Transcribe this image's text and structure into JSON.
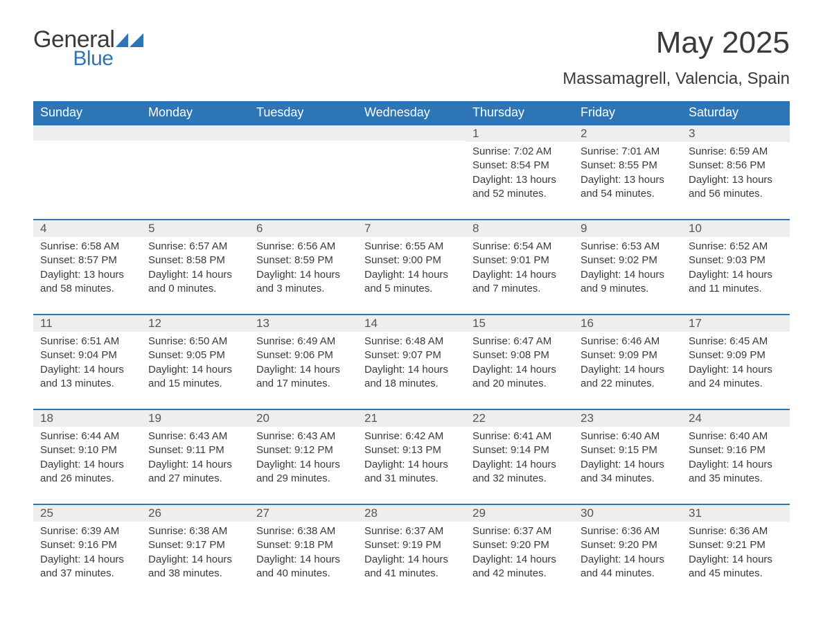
{
  "logo": {
    "top_word": "General",
    "bottom_word": "Blue",
    "mark_color": "#2e75b6"
  },
  "title": "May 2025",
  "subtitle": "Massamagrell, Valencia, Spain",
  "colors": {
    "header_bg": "#2e75b6",
    "header_text": "#ffffff",
    "daynum_bg": "#eeeeee",
    "row_border": "#2e75b6",
    "text": "#3a3a3a"
  },
  "weekdays": [
    "Sunday",
    "Monday",
    "Tuesday",
    "Wednesday",
    "Thursday",
    "Friday",
    "Saturday"
  ],
  "weeks": [
    [
      null,
      null,
      null,
      null,
      {
        "n": "1",
        "sunrise": "7:02 AM",
        "sunset": "8:54 PM",
        "daylight": "13 hours and 52 minutes."
      },
      {
        "n": "2",
        "sunrise": "7:01 AM",
        "sunset": "8:55 PM",
        "daylight": "13 hours and 54 minutes."
      },
      {
        "n": "3",
        "sunrise": "6:59 AM",
        "sunset": "8:56 PM",
        "daylight": "13 hours and 56 minutes."
      }
    ],
    [
      {
        "n": "4",
        "sunrise": "6:58 AM",
        "sunset": "8:57 PM",
        "daylight": "13 hours and 58 minutes."
      },
      {
        "n": "5",
        "sunrise": "6:57 AM",
        "sunset": "8:58 PM",
        "daylight": "14 hours and 0 minutes."
      },
      {
        "n": "6",
        "sunrise": "6:56 AM",
        "sunset": "8:59 PM",
        "daylight": "14 hours and 3 minutes."
      },
      {
        "n": "7",
        "sunrise": "6:55 AM",
        "sunset": "9:00 PM",
        "daylight": "14 hours and 5 minutes."
      },
      {
        "n": "8",
        "sunrise": "6:54 AM",
        "sunset": "9:01 PM",
        "daylight": "14 hours and 7 minutes."
      },
      {
        "n": "9",
        "sunrise": "6:53 AM",
        "sunset": "9:02 PM",
        "daylight": "14 hours and 9 minutes."
      },
      {
        "n": "10",
        "sunrise": "6:52 AM",
        "sunset": "9:03 PM",
        "daylight": "14 hours and 11 minutes."
      }
    ],
    [
      {
        "n": "11",
        "sunrise": "6:51 AM",
        "sunset": "9:04 PM",
        "daylight": "14 hours and 13 minutes."
      },
      {
        "n": "12",
        "sunrise": "6:50 AM",
        "sunset": "9:05 PM",
        "daylight": "14 hours and 15 minutes."
      },
      {
        "n": "13",
        "sunrise": "6:49 AM",
        "sunset": "9:06 PM",
        "daylight": "14 hours and 17 minutes."
      },
      {
        "n": "14",
        "sunrise": "6:48 AM",
        "sunset": "9:07 PM",
        "daylight": "14 hours and 18 minutes."
      },
      {
        "n": "15",
        "sunrise": "6:47 AM",
        "sunset": "9:08 PM",
        "daylight": "14 hours and 20 minutes."
      },
      {
        "n": "16",
        "sunrise": "6:46 AM",
        "sunset": "9:09 PM",
        "daylight": "14 hours and 22 minutes."
      },
      {
        "n": "17",
        "sunrise": "6:45 AM",
        "sunset": "9:09 PM",
        "daylight": "14 hours and 24 minutes."
      }
    ],
    [
      {
        "n": "18",
        "sunrise": "6:44 AM",
        "sunset": "9:10 PM",
        "daylight": "14 hours and 26 minutes."
      },
      {
        "n": "19",
        "sunrise": "6:43 AM",
        "sunset": "9:11 PM",
        "daylight": "14 hours and 27 minutes."
      },
      {
        "n": "20",
        "sunrise": "6:43 AM",
        "sunset": "9:12 PM",
        "daylight": "14 hours and 29 minutes."
      },
      {
        "n": "21",
        "sunrise": "6:42 AM",
        "sunset": "9:13 PM",
        "daylight": "14 hours and 31 minutes."
      },
      {
        "n": "22",
        "sunrise": "6:41 AM",
        "sunset": "9:14 PM",
        "daylight": "14 hours and 32 minutes."
      },
      {
        "n": "23",
        "sunrise": "6:40 AM",
        "sunset": "9:15 PM",
        "daylight": "14 hours and 34 minutes."
      },
      {
        "n": "24",
        "sunrise": "6:40 AM",
        "sunset": "9:16 PM",
        "daylight": "14 hours and 35 minutes."
      }
    ],
    [
      {
        "n": "25",
        "sunrise": "6:39 AM",
        "sunset": "9:16 PM",
        "daylight": "14 hours and 37 minutes."
      },
      {
        "n": "26",
        "sunrise": "6:38 AM",
        "sunset": "9:17 PM",
        "daylight": "14 hours and 38 minutes."
      },
      {
        "n": "27",
        "sunrise": "6:38 AM",
        "sunset": "9:18 PM",
        "daylight": "14 hours and 40 minutes."
      },
      {
        "n": "28",
        "sunrise": "6:37 AM",
        "sunset": "9:19 PM",
        "daylight": "14 hours and 41 minutes."
      },
      {
        "n": "29",
        "sunrise": "6:37 AM",
        "sunset": "9:20 PM",
        "daylight": "14 hours and 42 minutes."
      },
      {
        "n": "30",
        "sunrise": "6:36 AM",
        "sunset": "9:20 PM",
        "daylight": "14 hours and 44 minutes."
      },
      {
        "n": "31",
        "sunrise": "6:36 AM",
        "sunset": "9:21 PM",
        "daylight": "14 hours and 45 minutes."
      }
    ]
  ],
  "labels": {
    "sunrise": "Sunrise: ",
    "sunset": "Sunset: ",
    "daylight": "Daylight: "
  }
}
